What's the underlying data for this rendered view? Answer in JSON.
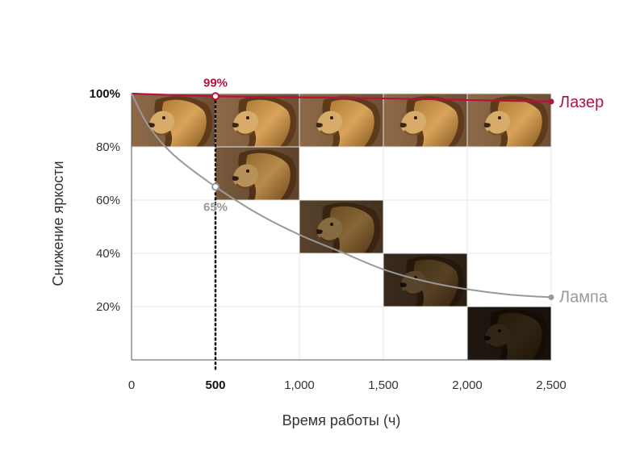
{
  "chart_data": {
    "type": "line",
    "xlabel": "Время работы (ч)",
    "ylabel": "Снижение яркости",
    "xlim": [
      0,
      2500
    ],
    "ylim": [
      0,
      100
    ],
    "x_ticks": [
      "0",
      "500",
      "1,000",
      "1,500",
      "2,000",
      "2,500"
    ],
    "x_tick_values": [
      0,
      500,
      1000,
      1500,
      2000,
      2500
    ],
    "y_ticks": [
      "100%",
      "80%",
      "60%",
      "40%",
      "20%"
    ],
    "y_tick_values": [
      100,
      80,
      60,
      40,
      20
    ],
    "grid": true,
    "series": [
      {
        "name": "Лазер",
        "color": "#b5123e",
        "x": [
          0,
          500,
          1000,
          1500,
          2000,
          2500
        ],
        "y": [
          100,
          99,
          98.6,
          98.2,
          97.6,
          97
        ]
      },
      {
        "name": "Лампа",
        "color": "#999999",
        "x": [
          0,
          100,
          250,
          500,
          750,
          1000,
          1250,
          1500,
          1750,
          2000,
          2250,
          2500
        ],
        "y": [
          100,
          88,
          77,
          65,
          55,
          47,
          40.5,
          34,
          29.5,
          26.5,
          24.5,
          23.5
        ]
      }
    ],
    "annotations": [
      {
        "x": 500,
        "y": 99,
        "text": "99%",
        "color": "#b5123e"
      },
      {
        "x": 500,
        "y": 65,
        "text": "65%",
        "color": "#999999"
      }
    ],
    "image_tiles": [
      {
        "x0": 0,
        "x1": 500,
        "y0": 80,
        "y1": 100,
        "brightness": 1.0
      },
      {
        "x0": 500,
        "x1": 1000,
        "y0": 80,
        "y1": 100,
        "brightness": 1.0
      },
      {
        "x0": 1000,
        "x1": 1500,
        "y0": 80,
        "y1": 100,
        "brightness": 1.0
      },
      {
        "x0": 1500,
        "x1": 2000,
        "y0": 80,
        "y1": 100,
        "brightness": 1.0
      },
      {
        "x0": 2000,
        "x1": 2500,
        "y0": 80,
        "y1": 100,
        "brightness": 1.0
      },
      {
        "x0": 500,
        "x1": 1000,
        "y0": 60,
        "y1": 80,
        "brightness": 0.85
      },
      {
        "x0": 1000,
        "x1": 1500,
        "y0": 40,
        "y1": 60,
        "brightness": 0.62
      },
      {
        "x0": 1500,
        "x1": 2000,
        "y0": 20,
        "y1": 40,
        "brightness": 0.4
      },
      {
        "x0": 2000,
        "x1": 2500,
        "y0": 0,
        "y1": 20,
        "brightness": 0.22
      }
    ],
    "marker_x": 500
  }
}
